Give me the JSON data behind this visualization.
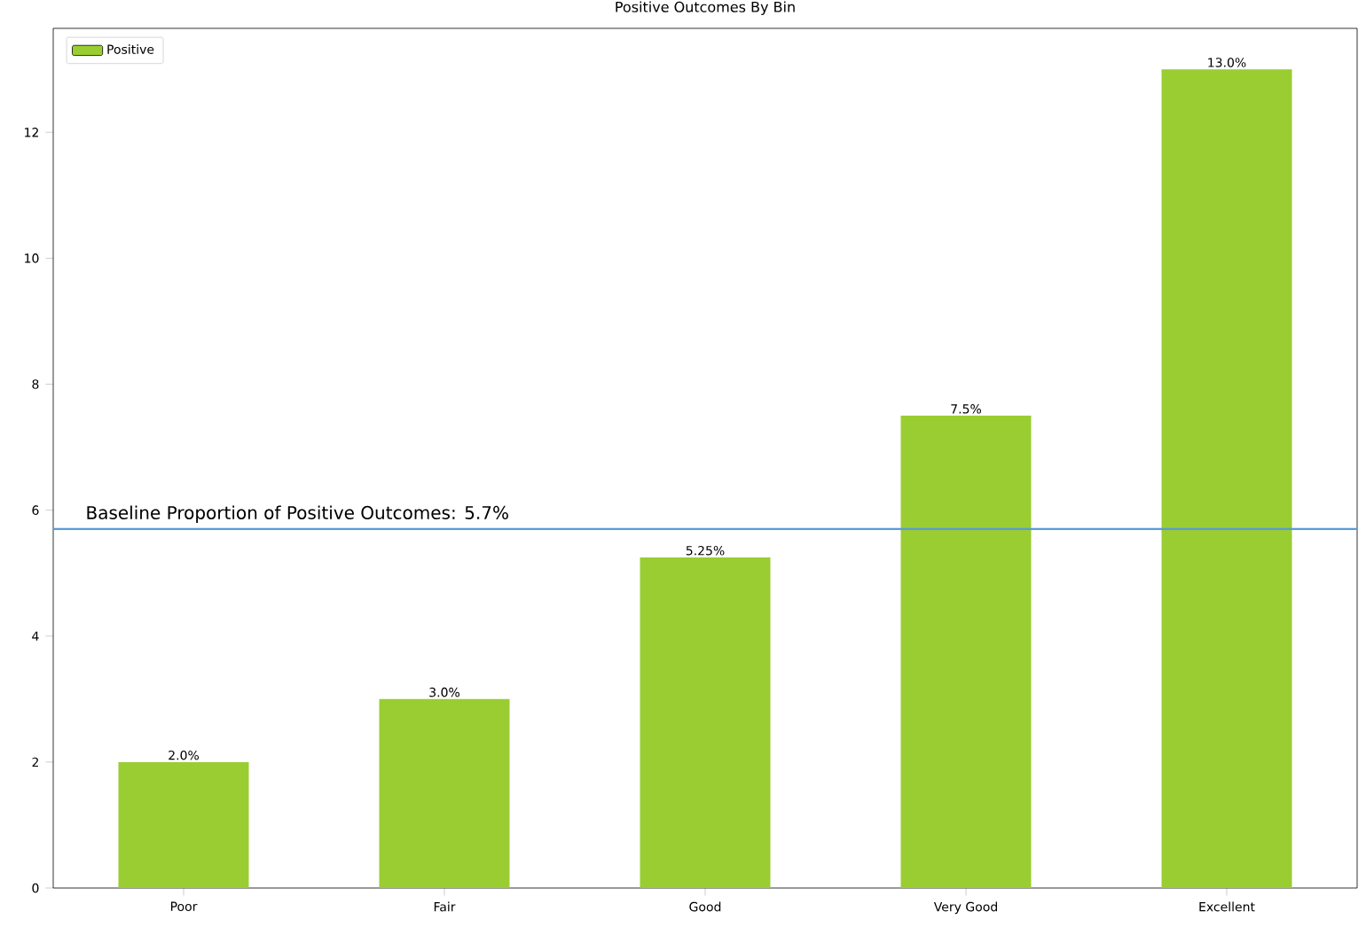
{
  "chart_data": {
    "type": "bar",
    "title": "Positive Outcomes By Bin",
    "categories": [
      "Poor",
      "Fair",
      "Good",
      "Very Good",
      "Excellent"
    ],
    "series": [
      {
        "name": "Positive",
        "color": "#9acd32",
        "values": [
          2.0,
          3.0,
          5.25,
          7.5,
          13.0
        ],
        "value_labels": [
          "2.0%",
          "3.0%",
          "5.25%",
          "7.5%",
          "13.0%"
        ]
      }
    ],
    "ylim": [
      0,
      13.65
    ],
    "yticks": [
      0,
      2,
      4,
      6,
      8,
      10,
      12
    ],
    "ref_lines": [
      {
        "axis": "y",
        "value": 5.7,
        "label": "Baseline Proportion of Positive Outcomes: 5.7%",
        "color": "#5b9bd5"
      }
    ],
    "legend": "top left",
    "grid": false
  }
}
